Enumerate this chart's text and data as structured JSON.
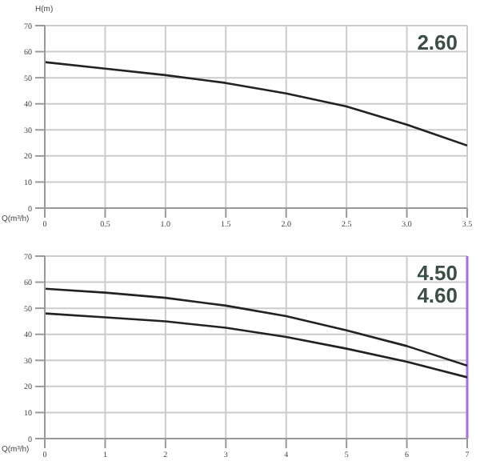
{
  "chart_data": [
    {
      "type": "line",
      "ylabel": "H(m)",
      "xlabel": "Q(m³/h)",
      "annotations": [
        "2.60"
      ],
      "x": [
        0,
        0.5,
        1,
        1.5,
        2,
        2.5,
        3,
        3.5
      ],
      "xlim": [
        0,
        3.5
      ],
      "xticks": [
        0,
        0.5,
        {
          "value": 1,
          "label": "1.0"
        },
        1.5,
        {
          "value": 2,
          "label": "2.0"
        },
        2.5,
        {
          "value": 3,
          "label": "3.0"
        },
        3.5
      ],
      "ylim": [
        0,
        70
      ],
      "yticks": [
        0,
        10,
        20,
        30,
        40,
        50,
        60,
        70
      ],
      "grid": true,
      "marker": "none",
      "series": [
        {
          "color": "#222222",
          "values": [
            56,
            53.5,
            51,
            48,
            44,
            39,
            32,
            24
          ]
        }
      ]
    },
    {
      "type": "line",
      "xlabel": "Q(m³/h)",
      "annotations": [
        "4.50",
        "4.60"
      ],
      "x": [
        0,
        1,
        2,
        3,
        4,
        5,
        6,
        7
      ],
      "xlim": [
        0,
        7
      ],
      "xticks": [
        0,
        1,
        2,
        3,
        4,
        5,
        6,
        7
      ],
      "ylim": [
        0,
        70
      ],
      "yticks": [
        0,
        10,
        20,
        30,
        40,
        50,
        60,
        70
      ],
      "grid": true,
      "marker": "none",
      "ref_lines": [
        {
          "axis": "x",
          "value": 7,
          "color": "#a070e0"
        }
      ],
      "series": [
        {
          "color": "#222222",
          "values": [
            57.5,
            56,
            54,
            51,
            47,
            41.5,
            35.5,
            28
          ]
        },
        {
          "color": "#222222",
          "values": [
            48,
            46.5,
            45,
            42.5,
            39,
            34.5,
            29.5,
            23.5
          ]
        }
      ]
    }
  ]
}
